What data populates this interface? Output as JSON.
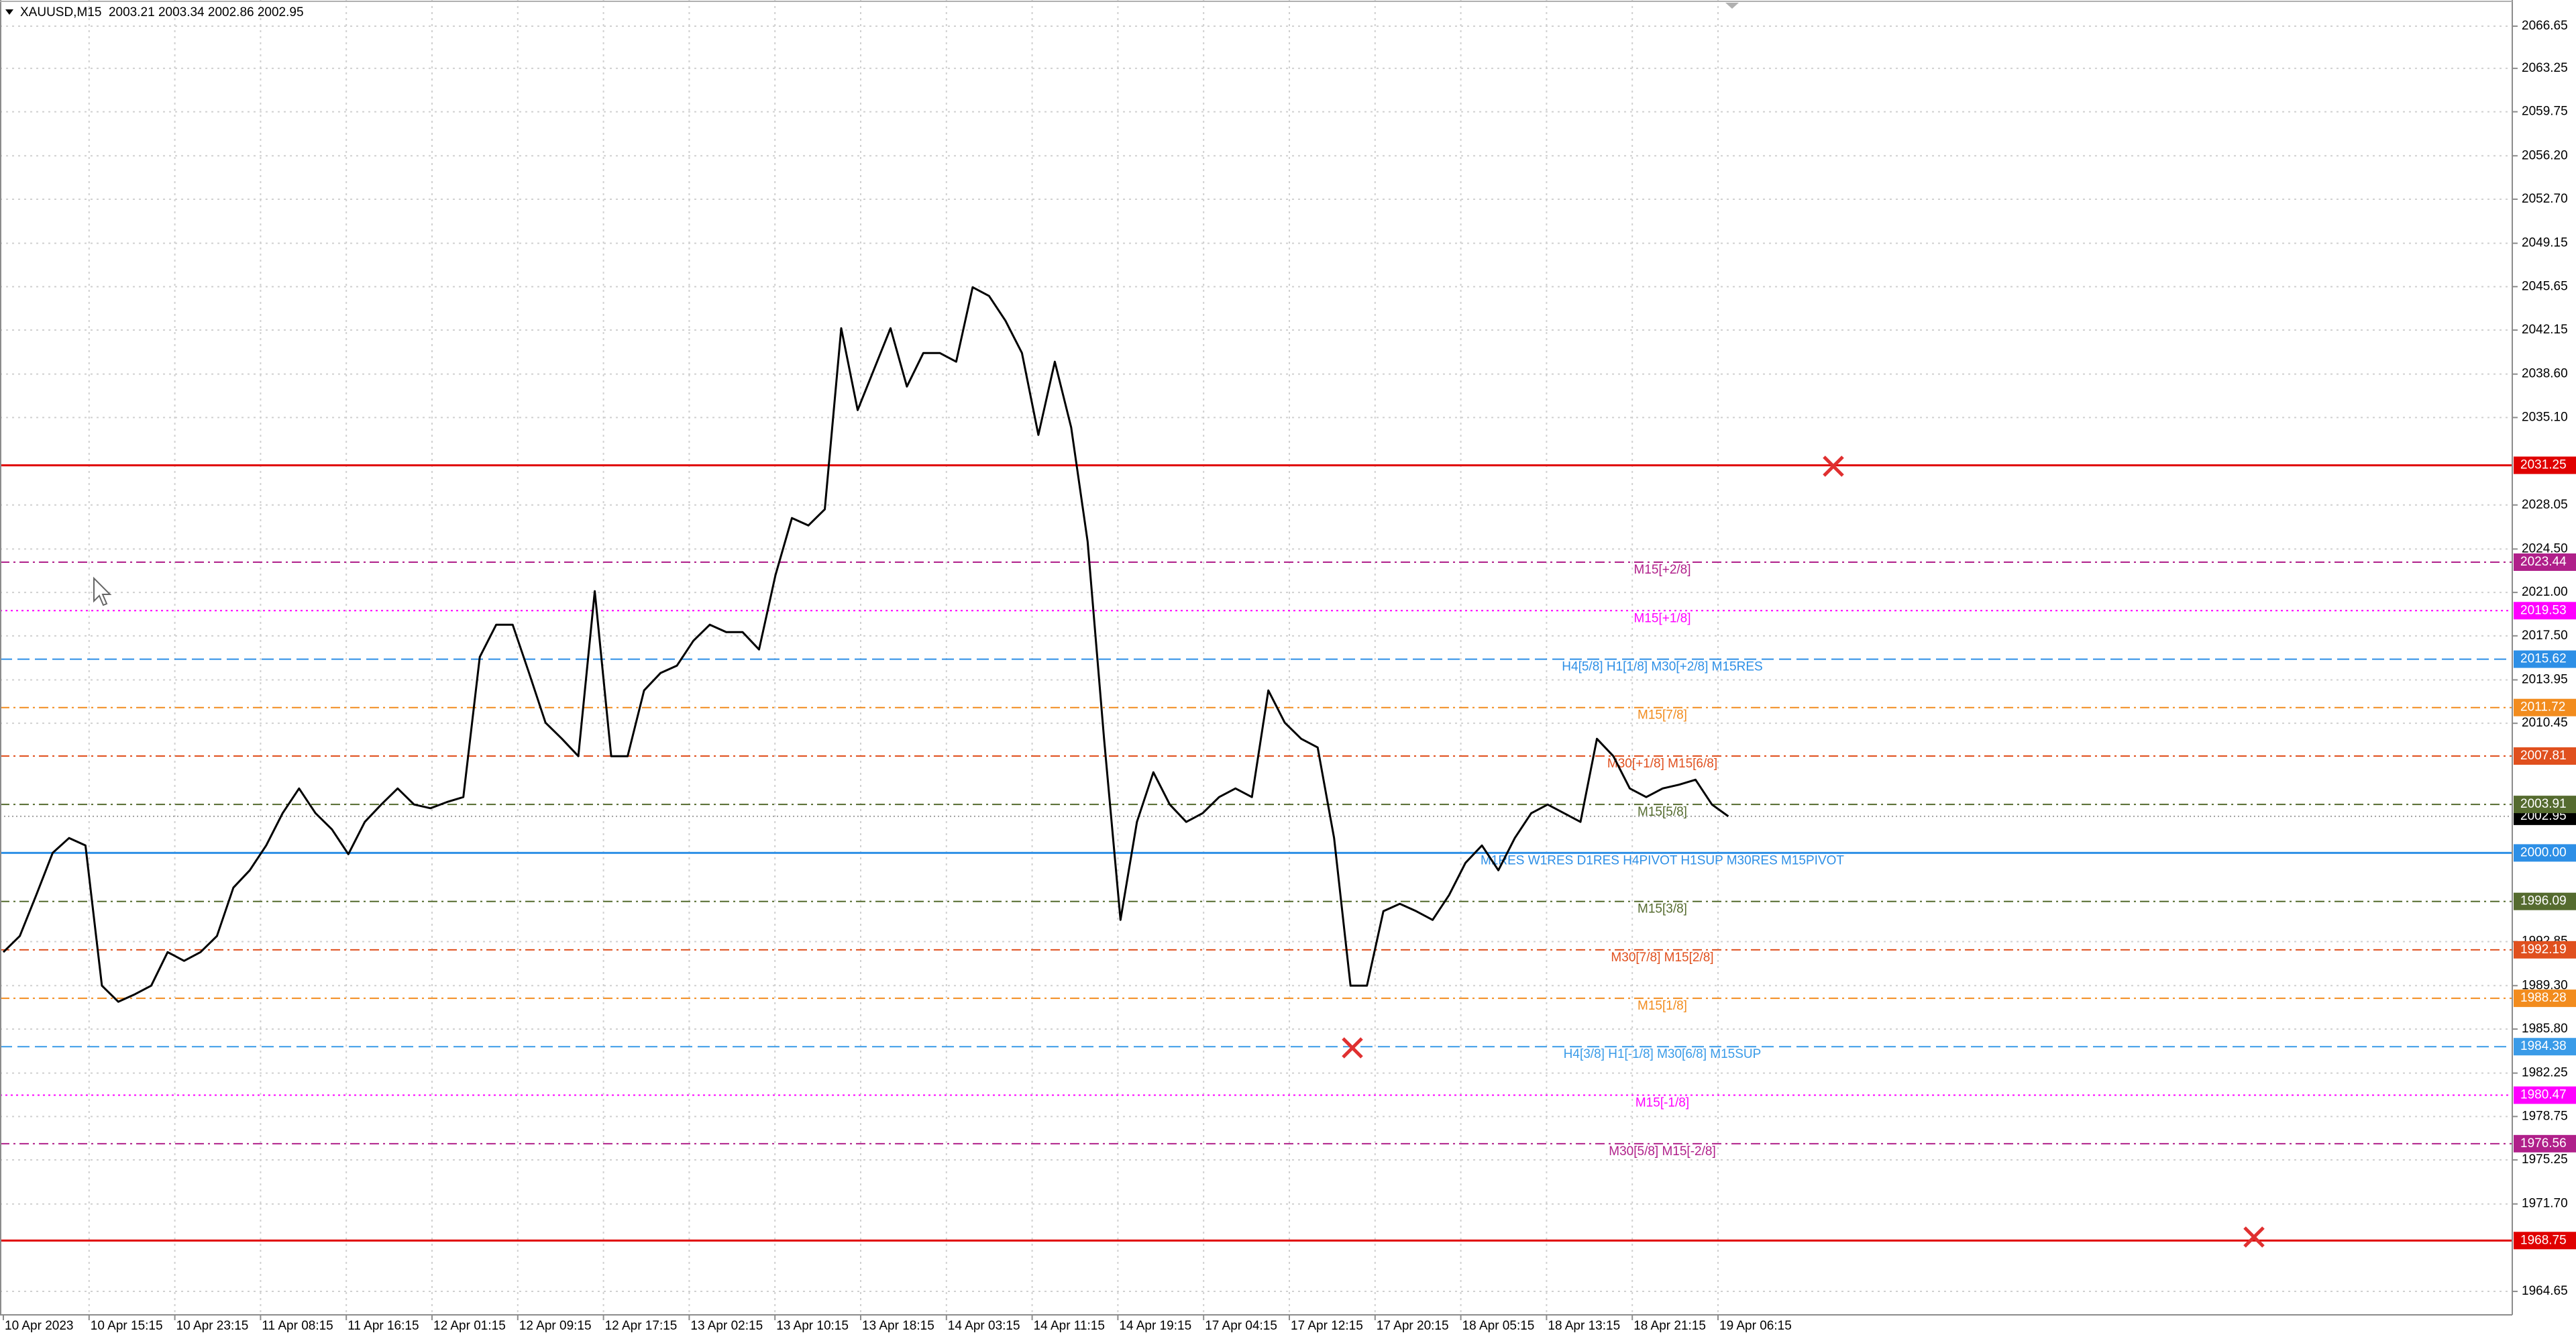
{
  "chart_data": {
    "type": "line",
    "title": "XAUUSD,M15  2003.21 2003.34 2002.86 2002.95",
    "color": "#000000",
    "grid": true,
    "ylim": [
      1962.76,
      2068.76
    ],
    "yticks": [
      2066.65,
      2063.25,
      2059.75,
      {
        "value": 2056.2,
        "label": "2056.20"
      },
      {
        "value": 2052.7,
        "label": "2052.70"
      },
      2049.15,
      2045.65,
      2042.15,
      {
        "value": 2038.6,
        "label": "2038.60"
      },
      {
        "value": 2035.1,
        "label": "2035.10"
      },
      2028.05,
      {
        "value": 2024.5,
        "label": "2024.50"
      },
      {
        "value": 2021,
        "label": "2021.00"
      },
      {
        "value": 2017.5,
        "label": "2017.50"
      },
      2013.95,
      2010.45,
      1992.85,
      {
        "value": 1989.3,
        "label": "1989.30"
      },
      {
        "value": 1985.8,
        "label": "1985.80"
      },
      1982.25,
      1978.75,
      1975.25,
      {
        "value": 1971.7,
        "label": "1971.70"
      },
      1964.65
    ],
    "xtick_labels": [
      "10 Apr 2023",
      "10 Apr 15:15",
      "10 Apr 23:15",
      "11 Apr 08:15",
      "11 Apr 16:15",
      "12 Apr 01:15",
      "12 Apr 09:15",
      "12 Apr 17:15",
      "13 Apr 02:15",
      "13 Apr 10:15",
      "13 Apr 18:15",
      "14 Apr 03:15",
      "14 Apr 11:15",
      "14 Apr 19:15",
      "17 Apr 04:15",
      "17 Apr 12:15",
      "17 Apr 20:15",
      "18 Apr 05:15",
      "18 Apr 13:15",
      "18 Apr 21:15",
      "19 Apr 06:15"
    ],
    "values": [
      1992,
      1993.3,
      1996.6,
      2000,
      2001.2,
      2000.6,
      1989.3,
      1988,
      1988.6,
      1989.3,
      1992,
      1991.3,
      1992,
      1993.3,
      1997.2,
      1998.6,
      2000.6,
      2003.2,
      2005.2,
      2003.2,
      2001.9,
      1999.9,
      2002.5,
      2003.9,
      2005.2,
      2003.9,
      2003.6,
      2004.1,
      2004.5,
      2015.8,
      2018.4,
      2018.4,
      2014.5,
      2010.5,
      2009.2,
      2007.8,
      2021.1,
      2007.8,
      2007.8,
      2013.1,
      2014.5,
      2015.1,
      2017.1,
      2018.4,
      2017.8,
      2017.8,
      2016.4,
      2022.4,
      2027,
      2026.4,
      2027.7,
      2042.3,
      2035.7,
      2039,
      2042.3,
      2037.6,
      2040.3,
      2040.3,
      2039.6,
      2045.6,
      2044.9,
      2042.9,
      2040.3,
      2033.7,
      2039.6,
      2034.3,
      2025.1,
      2009.2,
      1994.6,
      2002.5,
      2006.5,
      2003.9,
      2002.5,
      2003.2,
      2004.5,
      2005.2,
      2004.5,
      2013.1,
      2010.5,
      2009.2,
      2008.5,
      2001.2,
      1989.3,
      1989.3,
      1995.3,
      1995.9,
      1995.3,
      1994.6,
      1996.6,
      1999.2,
      2000.6,
      1998.6,
      2001.2,
      2003.2,
      2003.9,
      2003.2,
      2002.5,
      2009.2,
      2007.8,
      2005.2,
      2004.5,
      2005.2,
      2005.5,
      2005.9,
      2003.9,
      2002.95
    ],
    "last_price": 2002.95,
    "levels": [
      {
        "price": 2031.25,
        "color": "#e00000",
        "dash": "solid"
      },
      {
        "price": 2023.44,
        "color": "#b0208a",
        "dash": "dashdot",
        "label": "M15[+2/8]"
      },
      {
        "price": 2019.53,
        "color": "#ff00ff",
        "dash": "dotted",
        "label": "M15[+1/8]"
      },
      {
        "price": 2015.62,
        "color": "#2d8fe6",
        "dash": "dashed",
        "label": "H4[5/8] H1[1/8] M30[+2/8] M15RES"
      },
      {
        "price": 2011.72,
        "color": "#f28c1e",
        "dash": "dashdot",
        "label": "M15[7/8]"
      },
      {
        "price": 2007.81,
        "color": "#e0501e",
        "dash": "dashdot",
        "label": "M30[+1/8] M15[6/8]"
      },
      {
        "price": 2003.91,
        "color": "#556b2f",
        "dash": "dashdot",
        "label": "M15[5/8]"
      },
      {
        "price": {
          "value": 2000,
          "label": "2000.00"
        },
        "color": "#2d8fe6",
        "dash": "solid",
        "label": "M1RES W1RES D1RES H4PIVOT H1SUP M30RES M15PIVOT"
      },
      {
        "price": 1996.09,
        "color": "#556b2f",
        "dash": "dashdot",
        "label": "M15[3/8]"
      },
      {
        "price": 1992.19,
        "color": "#e0501e",
        "dash": "dashdot",
        "label": "M30[7/8] M15[2/8]"
      },
      {
        "price": 1988.28,
        "color": "#f28c1e",
        "dash": "dashdot",
        "label": "M15[1/8]"
      },
      {
        "price": 1984.38,
        "color": "#3a9be8",
        "dash": "dashed",
        "label": "H4[3/8] H1[-1/8] M30[6/8] M15SUP"
      },
      {
        "price": 1980.47,
        "color": "#ff00ff",
        "dash": "dotted",
        "label": "M15[-1/8]"
      },
      {
        "price": 1976.56,
        "color": "#b0208a",
        "dash": "dashdot",
        "label": "M30[5/8] M15[-2/8]"
      },
      {
        "price": 1968.75,
        "color": "#e00000",
        "dash": "solid"
      }
    ]
  }
}
